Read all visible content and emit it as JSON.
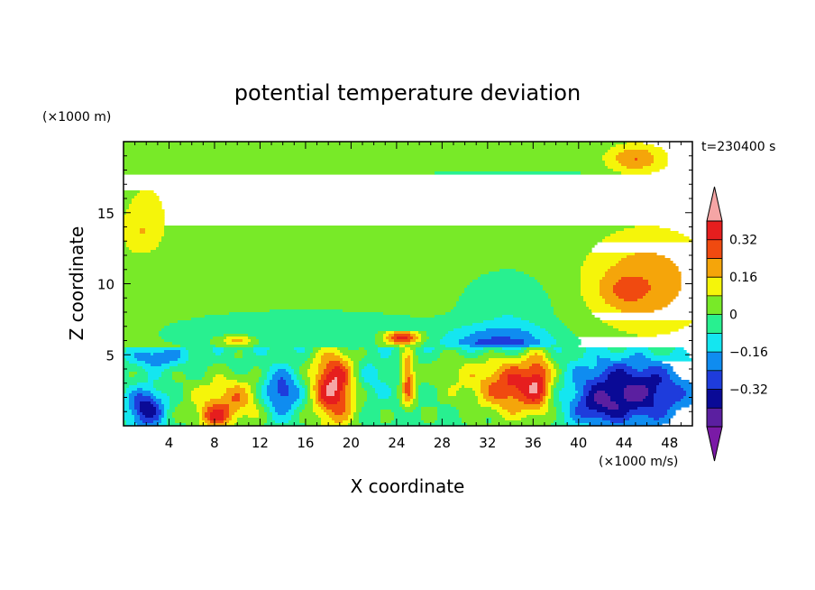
{
  "chart_data": {
    "type": "heatmap",
    "title": "potential temperature deviation",
    "xlabel": "X coordinate",
    "ylabel": "Z coordinate",
    "x_unit_label": "(×1000 m/s)",
    "y_unit_label": "(×1000 m)",
    "time_label": "t=230400 s",
    "xlim": [
      0,
      50
    ],
    "ylim": [
      0,
      20
    ],
    "x_ticks": [
      4,
      8,
      12,
      16,
      20,
      24,
      28,
      32,
      36,
      40,
      44,
      48
    ],
    "y_ticks": [
      5,
      10,
      15
    ],
    "colorbar": {
      "levels": [
        -0.48,
        -0.4,
        -0.32,
        -0.24,
        -0.16,
        -0.08,
        0,
        0.08,
        0.16,
        0.24,
        0.32,
        0.4
      ],
      "tick_values": [
        0.32,
        0.16,
        0,
        -0.16,
        -0.32
      ],
      "tick_labels": [
        "0.32",
        "0.16",
        "0",
        "−0.16",
        "−0.32"
      ],
      "colors": [
        "#7a1aa6",
        "#5b1fa0",
        "#0a0a96",
        "#1e3cdc",
        "#0f8cf0",
        "#14e6f0",
        "#28f090",
        "#78ea28",
        "#f5f50a",
        "#f5a50a",
        "#f04a10",
        "#e61e1e",
        "#f5a5a5"
      ]
    }
  }
}
